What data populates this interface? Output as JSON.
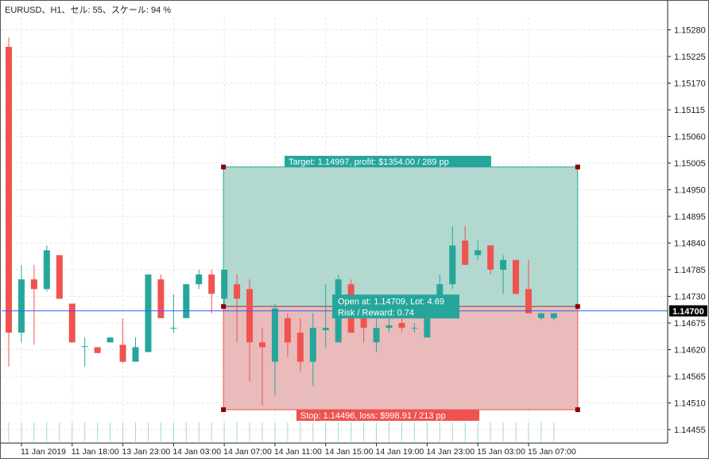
{
  "window": {
    "title": "EURUSD、H1、セル: 55、スケール: 94 %"
  },
  "colors": {
    "background": "#ffffff",
    "grid": "#e6e6e6",
    "axis": "#222222",
    "bull": "#26a69a",
    "bear": "#ef5350",
    "profit_zone": "#b2d8d0",
    "loss_zone": "#e9bbbb",
    "profit_label_bg": "#26a69a",
    "loss_label_bg": "#ef5350",
    "price_line": "#2962ff",
    "handle": "#8b0000"
  },
  "chart_data": {
    "type": "candlestick",
    "symbol": "EURUSD",
    "timeframe": "H1",
    "ylim": [
      1.1442,
      1.15315
    ],
    "price_ticks": [
      1.1528,
      1.15225,
      1.1517,
      1.15115,
      1.1506,
      1.15005,
      1.1495,
      1.14895,
      1.1484,
      1.14785,
      1.1473,
      1.14675,
      1.1462,
      1.14565,
      1.1451,
      1.14455
    ],
    "price_tick_labels": [
      "1.15280",
      "1.15225",
      "1.15170",
      "1.15115",
      "1.15060",
      "1.15005",
      "1.14950",
      "1.14895",
      "1.14840",
      "1.14785",
      "1.14730",
      "1.14675",
      "1.14620",
      "1.14565",
      "1.14510",
      "1.14455"
    ],
    "time_labels": [
      {
        "label": "11 Jan 2019",
        "index": 1
      },
      {
        "label": "11 Jan 18:00",
        "index": 5
      },
      {
        "label": "13 Jan 23:00",
        "index": 9
      },
      {
        "label": "14 Jan 03:00",
        "index": 13
      },
      {
        "label": "14 Jan 07:00",
        "index": 17
      },
      {
        "label": "14 Jan 11:00",
        "index": 21
      },
      {
        "label": "14 Jan 15:00",
        "index": 25
      },
      {
        "label": "14 Jan 19:00",
        "index": 29
      },
      {
        "label": "14 Jan 23:00",
        "index": 33
      },
      {
        "label": "15 Jan 03:00",
        "index": 37
      },
      {
        "label": "15 Jan 07:00",
        "index": 41
      }
    ],
    "candles": [
      {
        "o": 1.15245,
        "h": 1.15265,
        "l": 1.14585,
        "c": 1.14655
      },
      {
        "o": 1.14655,
        "h": 1.14795,
        "l": 1.14635,
        "c": 1.14765
      },
      {
        "o": 1.14765,
        "h": 1.14795,
        "l": 1.1463,
        "c": 1.14745
      },
      {
        "o": 1.14745,
        "h": 1.14835,
        "l": 1.1474,
        "c": 1.14825
      },
      {
        "o": 1.14815,
        "h": 1.14815,
        "l": 1.14725,
        "c": 1.14725
      },
      {
        "o": 1.14715,
        "h": 1.14715,
        "l": 1.14635,
        "c": 1.14635
      },
      {
        "o": 1.14627,
        "h": 1.14645,
        "l": 1.14585,
        "c": 1.14627
      },
      {
        "o": 1.14625,
        "h": 1.14625,
        "l": 1.14613,
        "c": 1.14613
      },
      {
        "o": 1.14635,
        "h": 1.14645,
        "l": 1.14635,
        "c": 1.14645
      },
      {
        "o": 1.1463,
        "h": 1.14685,
        "l": 1.14592,
        "c": 1.14595
      },
      {
        "o": 1.14595,
        "h": 1.14645,
        "l": 1.14595,
        "c": 1.14625
      },
      {
        "o": 1.14615,
        "h": 1.14775,
        "l": 1.14615,
        "c": 1.14775
      },
      {
        "o": 1.14765,
        "h": 1.14775,
        "l": 1.14685,
        "c": 1.14685
      },
      {
        "o": 1.14665,
        "h": 1.14735,
        "l": 1.14655,
        "c": 1.14665
      },
      {
        "o": 1.14685,
        "h": 1.14755,
        "l": 1.14685,
        "c": 1.14755
      },
      {
        "o": 1.14755,
        "h": 1.14785,
        "l": 1.14745,
        "c": 1.14775
      },
      {
        "o": 1.14775,
        "h": 1.14785,
        "l": 1.14695,
        "c": 1.14735
      },
      {
        "o": 1.14725,
        "h": 1.14785,
        "l": 1.14715,
        "c": 1.14785
      },
      {
        "o": 1.14755,
        "h": 1.14775,
        "l": 1.14635,
        "c": 1.14725
      },
      {
        "o": 1.14745,
        "h": 1.14765,
        "l": 1.14555,
        "c": 1.14635
      },
      {
        "o": 1.14635,
        "h": 1.14665,
        "l": 1.14505,
        "c": 1.14625
      },
      {
        "o": 1.14595,
        "h": 1.14715,
        "l": 1.14525,
        "c": 1.14705
      },
      {
        "o": 1.14685,
        "h": 1.14695,
        "l": 1.14605,
        "c": 1.14635
      },
      {
        "o": 1.14655,
        "h": 1.14685,
        "l": 1.14575,
        "c": 1.14595
      },
      {
        "o": 1.14595,
        "h": 1.14695,
        "l": 1.14545,
        "c": 1.14665
      },
      {
        "o": 1.1466,
        "h": 1.14755,
        "l": 1.14625,
        "c": 1.14665
      },
      {
        "o": 1.14635,
        "h": 1.14775,
        "l": 1.14635,
        "c": 1.14765
      },
      {
        "o": 1.14755,
        "h": 1.14765,
        "l": 1.14655,
        "c": 1.14655
      },
      {
        "o": 1.14685,
        "h": 1.14715,
        "l": 1.14635,
        "c": 1.14665
      },
      {
        "o": 1.14635,
        "h": 1.14695,
        "l": 1.14615,
        "c": 1.14665
      },
      {
        "o": 1.14665,
        "h": 1.14685,
        "l": 1.14655,
        "c": 1.1467
      },
      {
        "o": 1.14675,
        "h": 1.14695,
        "l": 1.14655,
        "c": 1.14665
      },
      {
        "o": 1.14665,
        "h": 1.14675,
        "l": 1.14655,
        "c": 1.14665
      },
      {
        "o": 1.14645,
        "h": 1.14725,
        "l": 1.14645,
        "c": 1.14695
      },
      {
        "o": 1.14705,
        "h": 1.14775,
        "l": 1.14705,
        "c": 1.14755
      },
      {
        "o": 1.14755,
        "h": 1.14875,
        "l": 1.14745,
        "c": 1.14835
      },
      {
        "o": 1.14845,
        "h": 1.14875,
        "l": 1.14795,
        "c": 1.14795
      },
      {
        "o": 1.14815,
        "h": 1.14845,
        "l": 1.14805,
        "c": 1.14825
      },
      {
        "o": 1.14835,
        "h": 1.14835,
        "l": 1.14775,
        "c": 1.14785
      },
      {
        "o": 1.14785,
        "h": 1.14815,
        "l": 1.14735,
        "c": 1.14805
      },
      {
        "o": 1.14805,
        "h": 1.14805,
        "l": 1.14735,
        "c": 1.14735
      },
      {
        "o": 1.14745,
        "h": 1.14805,
        "l": 1.14695,
        "c": 1.14695
      },
      {
        "o": 1.14685,
        "h": 1.14695,
        "l": 1.1468,
        "c": 1.14695
      },
      {
        "o": 1.14685,
        "h": 1.14695,
        "l": 1.1468,
        "c": 1.14695
      }
    ],
    "position": {
      "type": "long",
      "entry": 1.14709,
      "target": 1.14997,
      "stop": 1.14496,
      "start_index": 17,
      "end_index": 44,
      "target_label": "Target: 1.14997, profit: $1354.00 / 289 pp",
      "stop_label": "Stop: 1.14496, loss: $998.91 / 213 pp",
      "open_label": "Open at: 1.14709, Lot: 4.69",
      "rr_label": "Risk / Reward: 0.74"
    },
    "current_price": 1.147,
    "current_price_label": "1.14700",
    "grid": true
  }
}
